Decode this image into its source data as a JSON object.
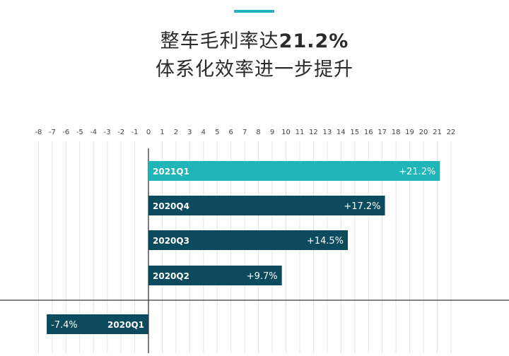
{
  "header": {
    "title_line1_prefix": "整车毛利率达",
    "title_line1_value": "21.2%",
    "title_line2": "体系化效率进一步提升"
  },
  "colors": {
    "accent": "#1fb5b5",
    "bar_highlight": "#20b6b8",
    "bar_dark": "#0c4a5d",
    "grid": "#dfe6e8",
    "axis": "#3a3a3a"
  },
  "chart_data": {
    "type": "bar",
    "orientation": "horizontal",
    "categories": [
      "2021Q1",
      "2020Q4",
      "2020Q3",
      "2020Q2",
      "2020Q1"
    ],
    "values": [
      21.2,
      17.2,
      14.5,
      9.7,
      -7.4
    ],
    "value_labels": [
      "+21.2%",
      "+17.2%",
      "+14.5%",
      "+9.7%",
      "-7.4%"
    ],
    "highlight": [
      "2021Q1"
    ],
    "x_ticks": [
      -8,
      -7,
      -6,
      -5,
      -4,
      -3,
      -2,
      -1,
      0,
      1,
      2,
      3,
      4,
      5,
      6,
      7,
      8,
      9,
      10,
      11,
      12,
      13,
      14,
      15,
      16,
      17,
      18,
      19,
      20,
      21,
      22
    ],
    "xlim": [
      -8,
      22
    ],
    "grid": true,
    "title": "",
    "xlabel": "",
    "ylabel": ""
  }
}
